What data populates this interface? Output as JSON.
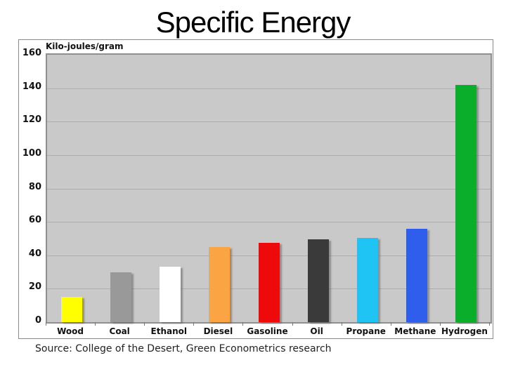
{
  "title": "Specific Energy",
  "source": "Source: College of the Desert, Green Econometrics research",
  "colors": {
    "plot_background": "#c9c9c9",
    "gridline": "#aeaeae",
    "frame_border": "#8a8a8a"
  },
  "chart_data": {
    "type": "bar",
    "title": "Specific Energy",
    "ylabel": "Kilo-joules/gram",
    "xlabel": "",
    "ylim": [
      0,
      160
    ],
    "yticks": [
      0,
      20,
      40,
      60,
      80,
      100,
      120,
      140,
      160
    ],
    "grid": true,
    "legend": "none",
    "categories": [
      "Wood",
      "Coal",
      "Ethanol",
      "Diesel",
      "Gasoline",
      "Oil",
      "Propane",
      "Methane",
      "Hydrogen"
    ],
    "values": [
      15,
      30,
      33,
      45,
      47.5,
      49.5,
      50.5,
      56,
      142
    ],
    "bar_colors": [
      "#ffff00",
      "#999999",
      "#ffffff",
      "#faa444",
      "#ee0a0a",
      "#3a3a3a",
      "#20c4f4",
      "#2f5dec",
      "#0aae2b"
    ]
  }
}
